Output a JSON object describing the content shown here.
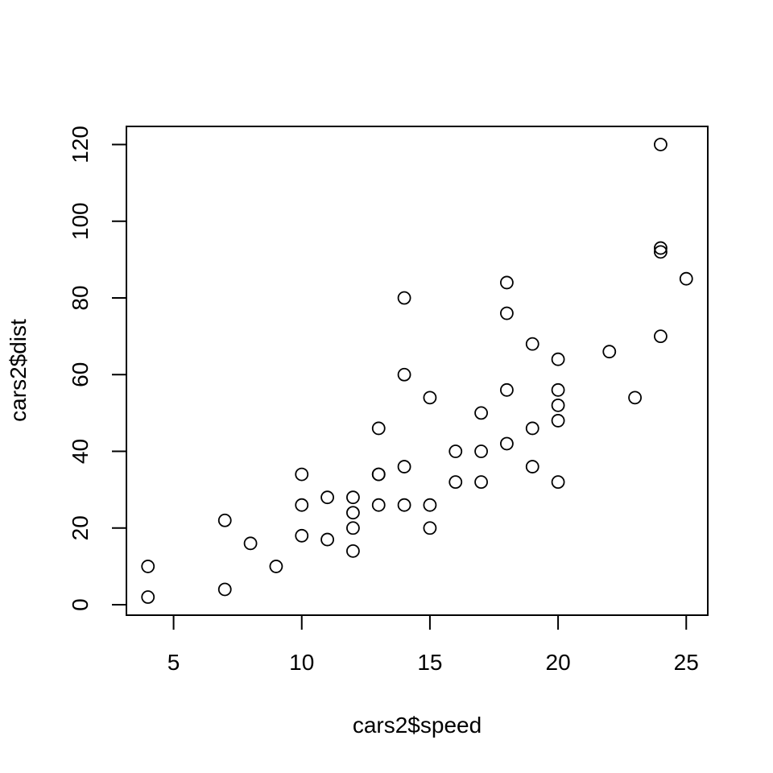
{
  "chart_data": {
    "type": "scatter",
    "title": "",
    "xlabel": "cars2$speed",
    "ylabel": "cars2$dist",
    "xlim": [
      3.16,
      25.84
    ],
    "ylim": [
      -2.72,
      124.72
    ],
    "xticks": [
      5,
      10,
      15,
      20,
      25
    ],
    "yticks": [
      0,
      20,
      40,
      60,
      80,
      100,
      120
    ],
    "grid": false,
    "legend": "none",
    "points": [
      {
        "x": 4,
        "y": 2
      },
      {
        "x": 4,
        "y": 10
      },
      {
        "x": 7,
        "y": 4
      },
      {
        "x": 7,
        "y": 22
      },
      {
        "x": 8,
        "y": 16
      },
      {
        "x": 9,
        "y": 10
      },
      {
        "x": 10,
        "y": 18
      },
      {
        "x": 10,
        "y": 26
      },
      {
        "x": 10,
        "y": 34
      },
      {
        "x": 11,
        "y": 17
      },
      {
        "x": 11,
        "y": 28
      },
      {
        "x": 12,
        "y": 14
      },
      {
        "x": 12,
        "y": 20
      },
      {
        "x": 12,
        "y": 24
      },
      {
        "x": 12,
        "y": 28
      },
      {
        "x": 13,
        "y": 26
      },
      {
        "x": 13,
        "y": 34
      },
      {
        "x": 13,
        "y": 34
      },
      {
        "x": 13,
        "y": 46
      },
      {
        "x": 14,
        "y": 26
      },
      {
        "x": 14,
        "y": 36
      },
      {
        "x": 14,
        "y": 60
      },
      {
        "x": 14,
        "y": 80
      },
      {
        "x": 15,
        "y": 20
      },
      {
        "x": 15,
        "y": 26
      },
      {
        "x": 15,
        "y": 54
      },
      {
        "x": 16,
        "y": 32
      },
      {
        "x": 16,
        "y": 40
      },
      {
        "x": 17,
        "y": 32
      },
      {
        "x": 17,
        "y": 40
      },
      {
        "x": 17,
        "y": 50
      },
      {
        "x": 18,
        "y": 42
      },
      {
        "x": 18,
        "y": 56
      },
      {
        "x": 18,
        "y": 76
      },
      {
        "x": 18,
        "y": 84
      },
      {
        "x": 19,
        "y": 36
      },
      {
        "x": 19,
        "y": 46
      },
      {
        "x": 19,
        "y": 68
      },
      {
        "x": 20,
        "y": 32
      },
      {
        "x": 20,
        "y": 48
      },
      {
        "x": 20,
        "y": 52
      },
      {
        "x": 20,
        "y": 56
      },
      {
        "x": 20,
        "y": 64
      },
      {
        "x": 22,
        "y": 66
      },
      {
        "x": 23,
        "y": 54
      },
      {
        "x": 24,
        "y": 70
      },
      {
        "x": 24,
        "y": 92
      },
      {
        "x": 24,
        "y": 93
      },
      {
        "x": 24,
        "y": 120
      },
      {
        "x": 25,
        "y": 85
      }
    ]
  }
}
